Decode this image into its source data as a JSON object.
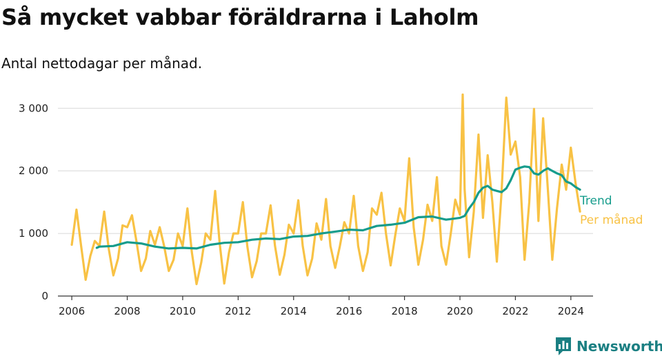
{
  "header": {
    "title": "Så mycket vabbar föräldrarna i Laholm",
    "subtitle": "Antal nettodagar per månad."
  },
  "brand": {
    "name": "Newsworthy",
    "icon": "bar-chart-speech-bubble-icon",
    "color": "#1a7f82"
  },
  "chart_data": {
    "type": "line",
    "title": "Så mycket vabbar föräldrarna i Laholm",
    "subtitle": "Antal nettodagar per månad.",
    "xlabel": "",
    "ylabel": "",
    "xlim": [
      2005.5,
      2024.8
    ],
    "ylim": [
      0,
      3300
    ],
    "x_ticks": [
      2006,
      2008,
      2010,
      2012,
      2014,
      2016,
      2018,
      2020,
      2022,
      2024
    ],
    "y_ticks": [
      0,
      1000,
      2000,
      3000
    ],
    "y_tick_labels": [
      "0",
      "1 000",
      "2 000",
      "3 000"
    ],
    "grid": "horizontal",
    "legend": "inline-right",
    "series": [
      {
        "name": "Per månad",
        "color": "#f8c245",
        "x": [
          2006.0,
          2006.17,
          2006.33,
          2006.5,
          2006.67,
          2006.83,
          2007.0,
          2007.17,
          2007.33,
          2007.5,
          2007.67,
          2007.83,
          2008.0,
          2008.17,
          2008.33,
          2008.5,
          2008.67,
          2008.83,
          2009.0,
          2009.17,
          2009.33,
          2009.5,
          2009.67,
          2009.83,
          2010.0,
          2010.17,
          2010.33,
          2010.5,
          2010.67,
          2010.83,
          2011.0,
          2011.17,
          2011.33,
          2011.5,
          2011.67,
          2011.83,
          2012.0,
          2012.17,
          2012.33,
          2012.5,
          2012.67,
          2012.83,
          2013.0,
          2013.17,
          2013.33,
          2013.5,
          2013.67,
          2013.83,
          2014.0,
          2014.17,
          2014.33,
          2014.5,
          2014.67,
          2014.83,
          2015.0,
          2015.17,
          2015.33,
          2015.5,
          2015.67,
          2015.83,
          2016.0,
          2016.17,
          2016.33,
          2016.5,
          2016.67,
          2016.83,
          2017.0,
          2017.17,
          2017.33,
          2017.5,
          2017.67,
          2017.83,
          2018.0,
          2018.17,
          2018.33,
          2018.5,
          2018.67,
          2018.83,
          2019.0,
          2019.17,
          2019.33,
          2019.5,
          2019.67,
          2019.83,
          2020.0,
          2020.1,
          2020.17,
          2020.33,
          2020.5,
          2020.67,
          2020.83,
          2021.0,
          2021.17,
          2021.33,
          2021.5,
          2021.67,
          2021.83,
          2022.0,
          2022.17,
          2022.33,
          2022.5,
          2022.67,
          2022.83,
          2023.0,
          2023.17,
          2023.33,
          2023.5,
          2023.67,
          2023.83,
          2024.0,
          2024.17,
          2024.33
        ],
        "values": [
          820,
          1380,
          820,
          260,
          640,
          880,
          800,
          1350,
          760,
          330,
          600,
          1130,
          1100,
          1290,
          880,
          400,
          600,
          1040,
          820,
          1100,
          800,
          400,
          580,
          1000,
          800,
          1400,
          700,
          190,
          540,
          1000,
          900,
          1680,
          860,
          200,
          700,
          1000,
          1000,
          1500,
          800,
          300,
          560,
          1000,
          1000,
          1450,
          800,
          340,
          660,
          1140,
          1000,
          1530,
          800,
          330,
          600,
          1160,
          900,
          1550,
          800,
          450,
          800,
          1180,
          1000,
          1600,
          800,
          400,
          700,
          1400,
          1300,
          1650,
          1000,
          490,
          980,
          1400,
          1200,
          2200,
          1100,
          500,
          900,
          1460,
          1200,
          1900,
          800,
          500,
          1000,
          1540,
          1300,
          3220,
          1700,
          620,
          1350,
          2580,
          1250,
          2250,
          1500,
          550,
          1650,
          3170,
          2260,
          2470,
          1900,
          580,
          1500,
          2990,
          1200,
          2840,
          1700,
          580,
          1400,
          2100,
          1700,
          2370,
          1800,
          1350
        ]
      },
      {
        "name": "Trend",
        "color": "#169c8c",
        "x": [
          2006.9,
          2007.0,
          2007.5,
          2008.0,
          2008.5,
          2009.0,
          2009.5,
          2010.0,
          2010.5,
          2011.0,
          2011.5,
          2012.0,
          2012.5,
          2013.0,
          2013.5,
          2014.0,
          2014.5,
          2015.0,
          2015.5,
          2016.0,
          2016.5,
          2017.0,
          2017.5,
          2018.0,
          2018.5,
          2019.0,
          2019.5,
          2020.0,
          2020.17,
          2020.33,
          2020.5,
          2020.67,
          2020.83,
          2021.0,
          2021.17,
          2021.33,
          2021.5,
          2021.67,
          2021.83,
          2022.0,
          2022.17,
          2022.33,
          2022.5,
          2022.67,
          2022.83,
          2023.0,
          2023.17,
          2023.33,
          2023.5,
          2023.67,
          2023.83,
          2024.0,
          2024.17,
          2024.33
        ],
        "values": [
          770,
          790,
          800,
          860,
          840,
          790,
          760,
          770,
          760,
          820,
          850,
          860,
          900,
          920,
          910,
          950,
          960,
          1000,
          1030,
          1060,
          1050,
          1120,
          1140,
          1170,
          1260,
          1270,
          1220,
          1250,
          1280,
          1400,
          1500,
          1650,
          1730,
          1760,
          1700,
          1680,
          1660,
          1720,
          1850,
          2020,
          2050,
          2070,
          2060,
          1960,
          1940,
          2000,
          2040,
          2000,
          1960,
          1930,
          1830,
          1800,
          1740,
          1700
        ]
      }
    ]
  }
}
